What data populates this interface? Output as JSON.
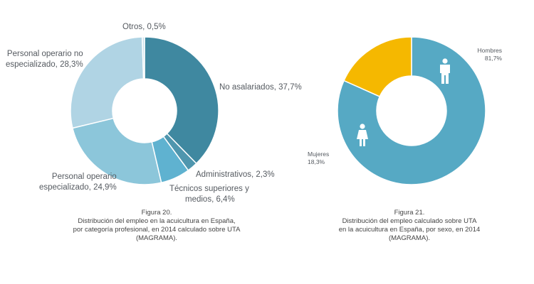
{
  "chart_data": [
    {
      "type": "pie",
      "style": "donut",
      "categories": [
        "No asalariados",
        "Administrativos",
        "Técnicos superiores y medios",
        "Personal operario especializado",
        "Personal operario no especializado",
        "Otros"
      ],
      "values": [
        37.7,
        2.3,
        6.4,
        24.9,
        28.3,
        0.5
      ],
      "colors": [
        "#3f88a0",
        "#4f96ae",
        "#5fb2d0",
        "#8cc6da",
        "#b0d4e4",
        "#cde2ec"
      ],
      "labels": [
        {
          "line1": "No asalariados, 37,7%"
        },
        {
          "line1": "Administrativos, 2,3%"
        },
        {
          "line1": "Técnicos superiores y",
          "line2": "medios, 6,4%"
        },
        {
          "line1": "Personal operario",
          "line2": "especializado, 24,9%"
        },
        {
          "line1": "Personal operario no",
          "line2": "especializado, 28,3%"
        },
        {
          "line1": "Otros, 0,5%"
        }
      ],
      "caption": [
        "Figura 20.",
        "Distribución del empleo en la acuicultura en España,",
        "por categoría profesional, en 2014 calculado sobre UTA",
        "(MAGRAMA)."
      ]
    },
    {
      "type": "pie",
      "style": "donut",
      "categories": [
        "Hombres",
        "Mujeres"
      ],
      "values": [
        81.7,
        18.3
      ],
      "colors": [
        "#56a9c4",
        "#f5b800"
      ],
      "icons": [
        "man-icon",
        "woman-icon"
      ],
      "labels": [
        {
          "line1": "Hombres",
          "line2": "81,7%"
        },
        {
          "line1": "Mujeres",
          "line2": "18,3%"
        }
      ],
      "caption": [
        "Figura 21.",
        "Distribución del empleo calculado sobre UTA",
        "en la acuicultura en España, por sexo, en 2014",
        "(MAGRAMA)."
      ]
    }
  ]
}
